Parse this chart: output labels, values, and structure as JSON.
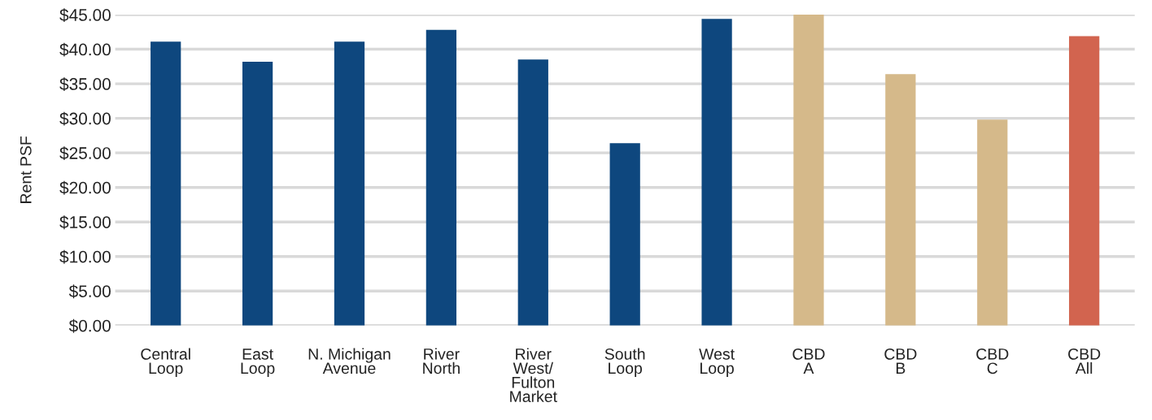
{
  "chart_data": {
    "type": "bar",
    "ylabel": "Rent PSF",
    "categories": [
      "Central\nLoop",
      "East\nLoop",
      "N. Michigan\nAvenue",
      "River\nNorth",
      "River\nWest/\nFulton\nMarket",
      "South\nLoop",
      "West\nLoop",
      "CBD\nA",
      "CBD\nB",
      "CBD\nC",
      "CBD\nAll"
    ],
    "values": [
      41.1,
      38.2,
      41.1,
      42.8,
      38.5,
      26.4,
      44.4,
      45.0,
      36.4,
      29.8,
      41.9
    ],
    "colors": [
      "#0e477e",
      "#0e477e",
      "#0e477e",
      "#0e477e",
      "#0e477e",
      "#0e477e",
      "#0e477e",
      "#d5b98a",
      "#d5b98a",
      "#d5b98a",
      "#d2644f"
    ],
    "ylim": [
      0,
      45
    ],
    "yticks": [
      {
        "value": 0,
        "label": "$0.00"
      },
      {
        "value": 5,
        "label": "$5.00"
      },
      {
        "value": 10,
        "label": "$10.00"
      },
      {
        "value": 15,
        "label": "$15.00"
      },
      {
        "value": 20,
        "label": "$20.00"
      },
      {
        "value": 25,
        "label": "$25.00"
      },
      {
        "value": 30,
        "label": "$30.00"
      },
      {
        "value": 35,
        "label": "$35.00"
      },
      {
        "value": 40,
        "label": "$40.00"
      },
      {
        "value": 45,
        "label": "$45.00"
      }
    ],
    "grid": "y",
    "legend": false
  }
}
